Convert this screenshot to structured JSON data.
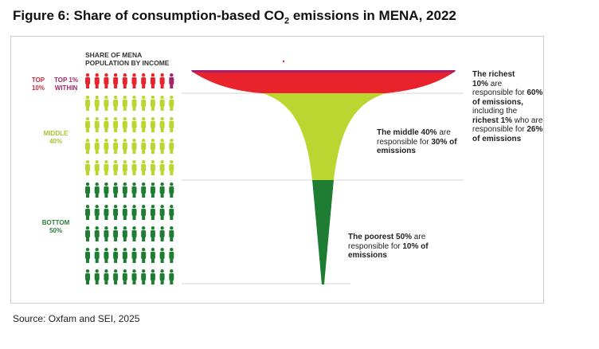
{
  "title": {
    "prefix": "Figure 6: Share of consumption-based CO",
    "subscript": "2",
    "suffix": " emissions in MENA, 2022"
  },
  "population_heading": "SHARE OF MENA POPULATION BY INCOME",
  "groups": {
    "top10": {
      "label": "TOP 10%",
      "color": "#e8232c"
    },
    "top1": {
      "label": "TOP 1% WITHIN",
      "color": "#a5236d"
    },
    "middle": {
      "label": "MIDDLE 40%",
      "color": "#bcd631"
    },
    "bottom": {
      "label": "BOTTOM 50%",
      "color": "#1e7d32"
    }
  },
  "annotations": {
    "richest": {
      "p1": "The richest",
      "p2": "10%",
      "p3": " are responsible for ",
      "p4": "60% of emissions,",
      "p5": " including the ",
      "p6": "richest 1%",
      "p7": " who are responsible for ",
      "p8": "26% of emissions"
    },
    "middle": {
      "p1": "The middle 40%",
      "p2": " are responsible for ",
      "p3": "30% of emissions"
    },
    "poorest": {
      "p1": "The poorest 50%",
      "p2": " are responsible for ",
      "p3": "10% of emissions"
    }
  },
  "chart_data": {
    "type": "diagram",
    "population_shares": {
      "top_1": 1,
      "top_10": 10,
      "middle_40": 40,
      "bottom_50": 50
    },
    "emission_shares": {
      "top_1": 26,
      "top_10": 60,
      "middle_40": 30,
      "bottom_50": 10
    },
    "pictogram_icons": {
      "top_10": 10,
      "top_1_highlighted": 1,
      "middle_40": 40,
      "bottom_50": 50
    }
  },
  "source": "Source: Oxfam and SEI, 2025"
}
